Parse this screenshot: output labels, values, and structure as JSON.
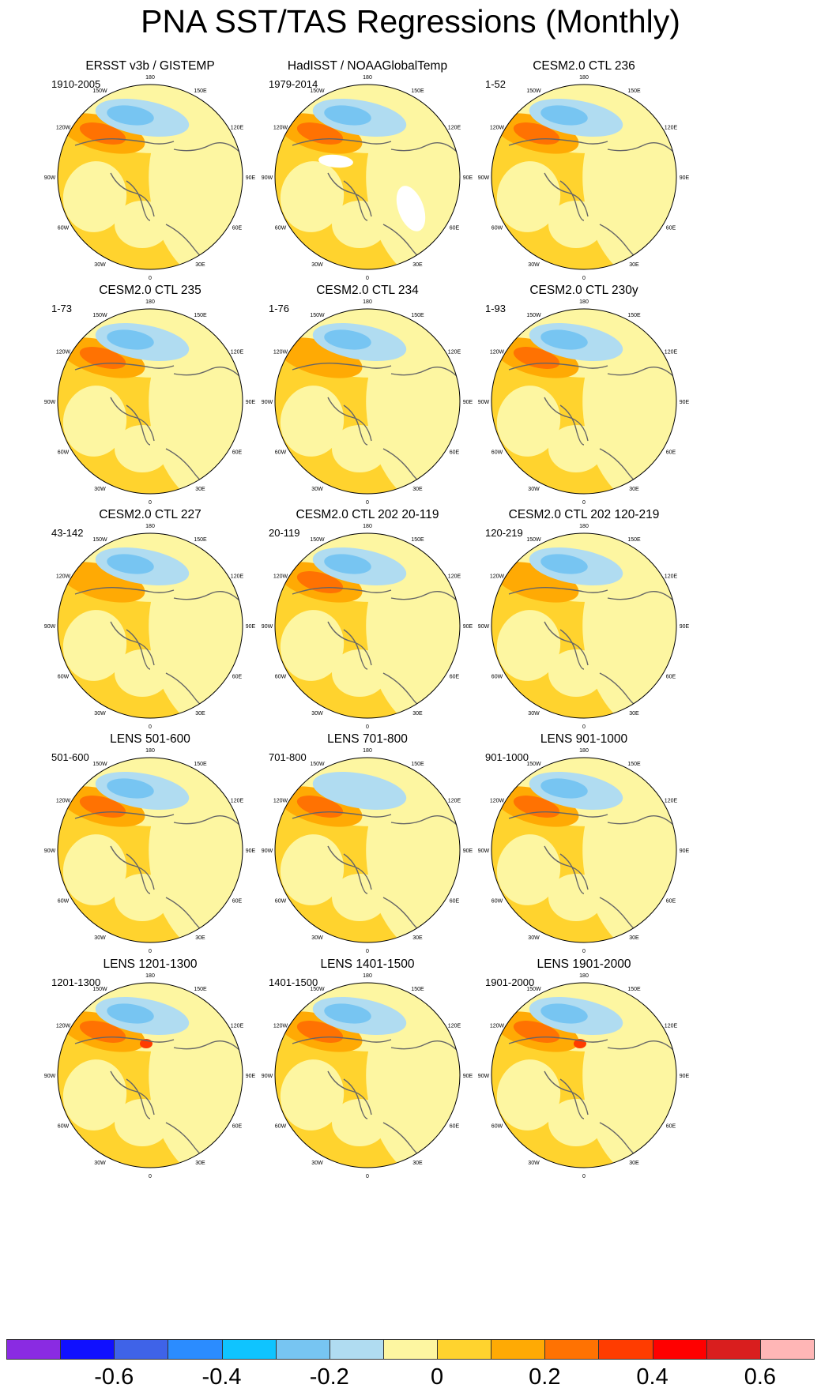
{
  "title": "PNA SST/TAS Regressions (Monthly)",
  "colors": {
    "map_background": "#fdf6a1",
    "land_outline": "#666666",
    "map_border": "#000000"
  },
  "colorbar": {
    "levels": [
      -0.7,
      -0.6,
      -0.5,
      -0.4,
      -0.3,
      -0.2,
      -0.1,
      0,
      0.1,
      0.2,
      0.3,
      0.4,
      0.5,
      0.6,
      0.7
    ],
    "colors": [
      "#8a2be2",
      "#1010ff",
      "#3f63e8",
      "#2b8cff",
      "#0fc4ff",
      "#77c5f2",
      "#b0dcf1",
      "#fdf6a1",
      "#ffd32e",
      "#ffaa04",
      "#ff7202",
      "#ff3c00",
      "#ff0000",
      "#d91e1e",
      "#ffb6b6"
    ],
    "labels": [
      "-0.6",
      "-0.4",
      "-0.2",
      "0",
      "0.2",
      "0.4",
      "0.6"
    ]
  },
  "lon_labels": [
    "180",
    "150E",
    "120E",
    "90E",
    "60E",
    "30E",
    "0",
    "30W",
    "60W",
    "90W",
    "120W",
    "150W"
  ],
  "chart_data": {
    "type": "heatmap",
    "projection": "north polar stereographic",
    "variable": "SST/TAS regression onto PNA index",
    "panels": [
      {
        "title": "ERSST v3b / GISTEMP",
        "period": "1910-2005",
        "npac_min": -0.3,
        "nam_max": 0.2,
        "has_missing": false
      },
      {
        "title": "HadISST / NOAAGlobalTemp",
        "period": "1979-2014",
        "npac_min": -0.3,
        "nam_max": 0.2,
        "has_missing": true
      },
      {
        "title": "CESM2.0 CTL 236",
        "period": "1-52",
        "npac_min": -0.3,
        "nam_max": 0.2,
        "has_missing": false
      },
      {
        "title": "CESM2.0 CTL 235",
        "period": "1-73",
        "npac_min": -0.3,
        "nam_max": 0.2,
        "has_missing": false
      },
      {
        "title": "CESM2.0 CTL 234",
        "period": "1-76",
        "npac_min": -0.3,
        "nam_max": 0.1,
        "has_missing": false
      },
      {
        "title": "CESM2.0 CTL 230y",
        "period": "1-93",
        "npac_min": -0.3,
        "nam_max": 0.2,
        "has_missing": false
      },
      {
        "title": "CESM2.0 CTL 227",
        "period": "43-142",
        "npac_min": -0.3,
        "nam_max": 0.1,
        "has_missing": false
      },
      {
        "title": "CESM2.0 CTL 202 20-119",
        "period": "20-119",
        "npac_min": -0.3,
        "nam_max": 0.2,
        "has_missing": false
      },
      {
        "title": "CESM2.0 CTL 202 120-219",
        "period": "120-219",
        "npac_min": -0.3,
        "nam_max": 0.1,
        "has_missing": false
      },
      {
        "title": "LENS 501-600",
        "period": "501-600",
        "npac_min": -0.3,
        "nam_max": 0.2,
        "has_missing": false
      },
      {
        "title": "LENS 701-800",
        "period": "701-800",
        "npac_min": -0.2,
        "nam_max": 0.2,
        "has_missing": false
      },
      {
        "title": "LENS 901-1000",
        "period": "901-1000",
        "npac_min": -0.3,
        "nam_max": 0.2,
        "has_missing": false
      },
      {
        "title": "LENS 1201-1300",
        "period": "1201-1300",
        "npac_min": -0.3,
        "nam_max": 0.3,
        "has_missing": false
      },
      {
        "title": "LENS 1401-1500",
        "period": "1401-1500",
        "npac_min": -0.3,
        "nam_max": 0.2,
        "has_missing": false
      },
      {
        "title": "LENS 1901-2000",
        "period": "1901-2000",
        "npac_min": -0.3,
        "nam_max": 0.3,
        "has_missing": false
      }
    ]
  }
}
